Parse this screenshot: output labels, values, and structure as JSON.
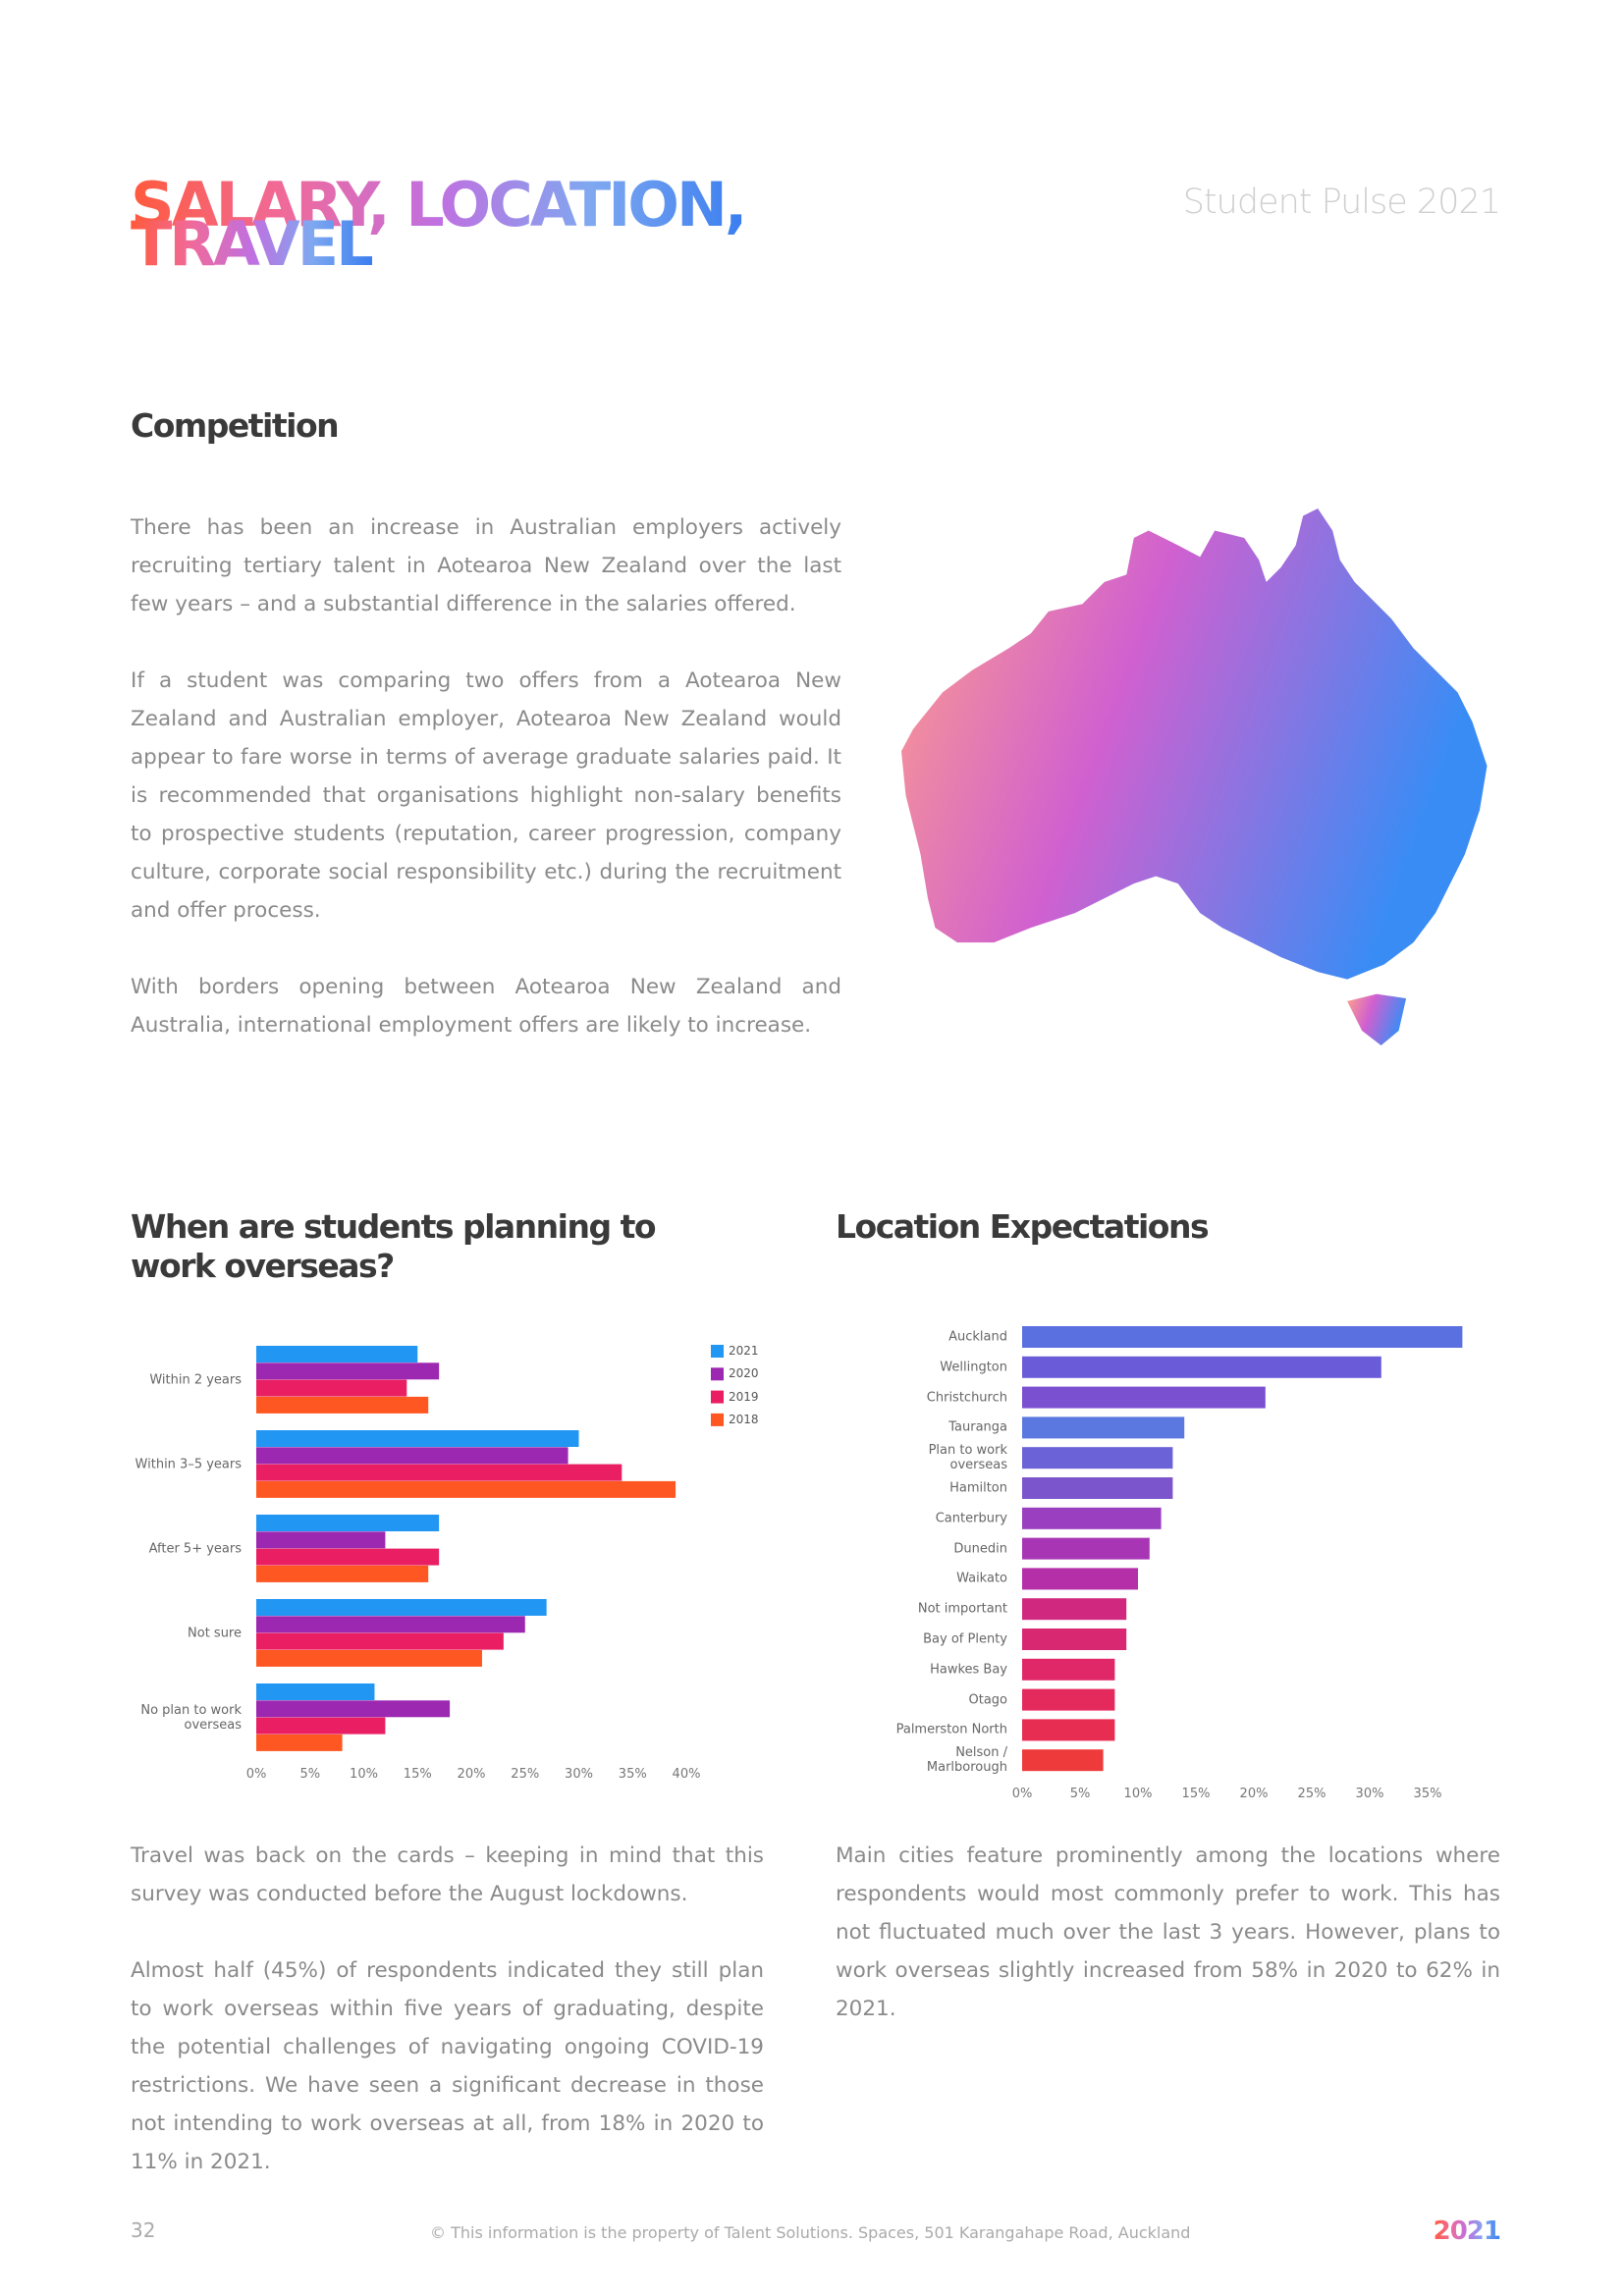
{
  "header": {
    "title_line1": "SALARY, LOCATION,",
    "title_line2": "TRAVEL",
    "publication": "Student Pulse 2021"
  },
  "competition": {
    "heading": "Competition",
    "paragraphs": [
      "There has been an increase in Australian employers actively recruiting tertiary talent in Aotearoa New Zealand over the last few years – and a substantial difference in the salaries offered.",
      "If a student was comparing two offers from a Aotearoa New Zealand and Australian employer, Aotearoa New Zealand would appear to fare worse in terms of average graduate salaries paid. It is recommended that organisations highlight non-salary benefits to prospective students (reputation, career progression, company culture, corporate social responsibility etc.) during the recruitment and offer process.",
      "With borders opening between Aotearoa New Zealand and Australia, international employment offers are likely to increase."
    ]
  },
  "chart_data": [
    {
      "type": "bar",
      "orientation": "horizontal",
      "title": "When are students planning to work overseas?",
      "categories": [
        "Within 2 years",
        "Within 3–5 years",
        "After 5+ years",
        "Not sure",
        "No plan to work overseas"
      ],
      "series": [
        {
          "name": "2021",
          "color": "#2196f3",
          "values": [
            15,
            30,
            17,
            27,
            11
          ]
        },
        {
          "name": "2020",
          "color": "#9c27b0",
          "values": [
            17,
            29,
            12,
            25,
            18
          ]
        },
        {
          "name": "2019",
          "color": "#e91e63",
          "values": [
            14,
            34,
            17,
            23,
            12
          ]
        },
        {
          "name": "2018",
          "color": "#ff5722",
          "values": [
            16,
            39,
            16,
            21,
            8
          ]
        }
      ],
      "xlim": [
        0,
        40
      ],
      "xticks": [
        {
          "value": 0,
          "label": "0%"
        },
        {
          "value": 5,
          "label": "5%"
        },
        {
          "value": 10,
          "label": "10%"
        },
        {
          "value": 15,
          "label": "15%"
        },
        {
          "value": 20,
          "label": "20%"
        },
        {
          "value": 25,
          "label": "25%"
        },
        {
          "value": 30,
          "label": "30%"
        },
        {
          "value": 35,
          "label": "35%"
        },
        {
          "value": 40,
          "label": "40%"
        }
      ],
      "legend": "top-right"
    },
    {
      "type": "bar",
      "orientation": "horizontal",
      "title": "Location Expectations",
      "categories": [
        "Auckland",
        "Wellington",
        "Christchurch",
        "Tauranga",
        "Plan to work overseas",
        "Hamilton",
        "Canterbury",
        "Dunedin",
        "Waikato",
        "Not important",
        "Bay of Plenty",
        "Hawkes Bay",
        "Otago",
        "Palmerston North",
        "Nelson / Marlborough"
      ],
      "values": [
        38,
        31,
        21,
        14,
        13,
        13,
        12,
        11,
        10,
        9,
        9,
        8,
        8,
        8,
        7
      ],
      "colors": [
        "#5a6fe0",
        "#6a5cd8",
        "#7a4fd0",
        "#5a78e0",
        "#6a62d6",
        "#7a55cc",
        "#9a3fc0",
        "#a836b4",
        "#b52fa8",
        "#d0287e",
        "#d82872",
        "#e02868",
        "#e42a5c",
        "#e82d52",
        "#ee3a3a"
      ],
      "xlim": [
        0,
        40
      ],
      "xticks": [
        {
          "value": 0,
          "label": "0%"
        },
        {
          "value": 5,
          "label": "5%"
        },
        {
          "value": 10,
          "label": "10%"
        },
        {
          "value": 15,
          "label": "15%"
        },
        {
          "value": 20,
          "label": "20%"
        },
        {
          "value": 25,
          "label": "25%"
        },
        {
          "value": 30,
          "label": "30%"
        },
        {
          "value": 35,
          "label": "35%"
        }
      ]
    }
  ],
  "travel_text": {
    "paragraphs": [
      "Travel was back on the cards – keeping in mind that this survey was conducted before the August lockdowns.",
      "Almost half (45%) of respondents indicated they still plan to work overseas within five years of graduating, despite the potential challenges of navigating ongoing COVID-19 restrictions. We have seen a significant decrease in those not intending to work overseas at all, from 18% in 2020 to 11% in 2021."
    ]
  },
  "location_text": {
    "paragraphs": [
      "Main cities feature prominently among the locations where respondents would most commonly prefer to work. This has not fluctuated much over the last 3 years. However, plans to work overseas slightly increased from 58% in 2020 to 62% in 2021."
    ]
  },
  "footer": {
    "page_number": "32",
    "copyright": "© This information is the property of Talent Solutions. Spaces, 501 Karangahape Road, Auckland",
    "year_badge": "2021"
  }
}
